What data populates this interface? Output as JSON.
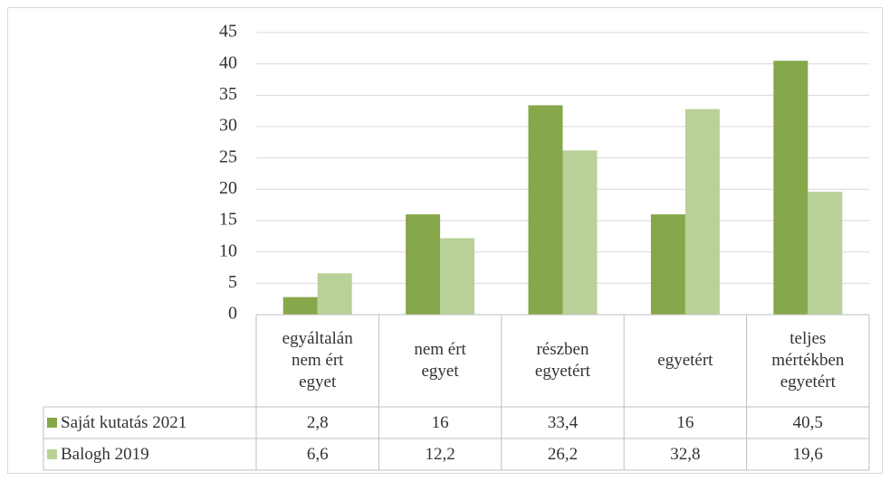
{
  "chart_data": {
    "type": "bar",
    "categories": [
      "egyáltalán nem ért egyet",
      "nem ért egyet",
      "részben egyetért",
      "egyetért",
      "teljes mértékben egyetért"
    ],
    "series": [
      {
        "name": "Saját kutatás 2021",
        "color": "#86a74a",
        "values": [
          2.8,
          16,
          33.4,
          16,
          40.5
        ],
        "value_labels": [
          "2,8",
          "16",
          "33,4",
          "16",
          "40,5"
        ]
      },
      {
        "name": "Balogh 2019",
        "color": "#b9d199",
        "values": [
          6.6,
          12.2,
          26.2,
          32.8,
          19.6
        ],
        "value_labels": [
          "6,6",
          "12,2",
          "26,2",
          "32,8",
          "19,6"
        ]
      }
    ],
    "ylim": [
      0,
      45
    ],
    "yticks": [
      0,
      5,
      10,
      15,
      20,
      25,
      30,
      35,
      40,
      45
    ],
    "grid": true
  }
}
